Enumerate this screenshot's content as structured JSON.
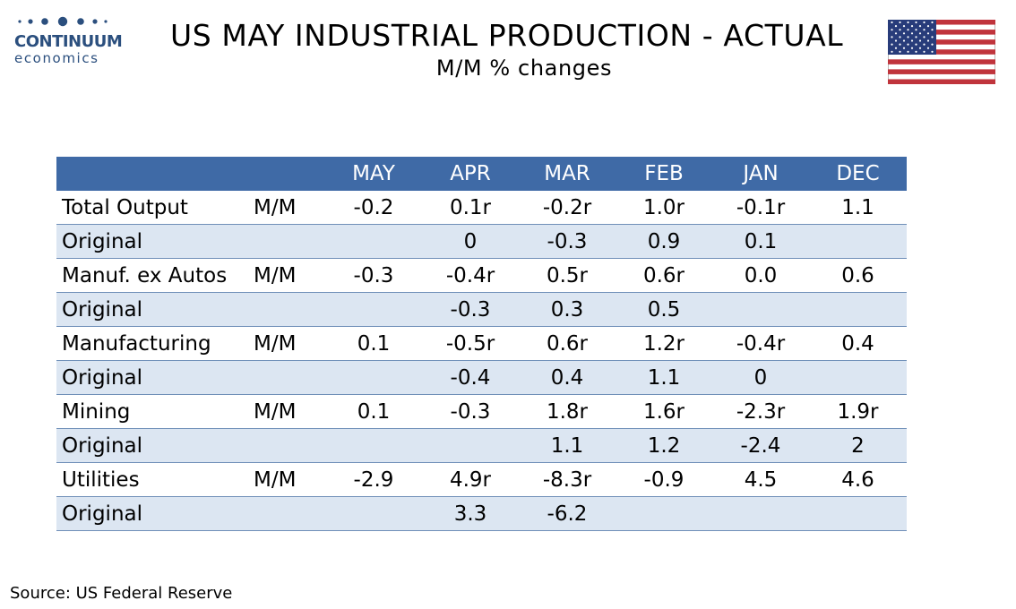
{
  "logo": {
    "word": "CONTINUUM",
    "sub": "economics",
    "color": "#2b4f7e"
  },
  "header": {
    "title": "US MAY INDUSTRIAL PRODUCTION - ACTUAL",
    "subtitle": "M/M % changes",
    "flag_icon": "us-flag-icon"
  },
  "chart_data": {
    "type": "table",
    "columns": [
      "",
      "",
      "MAY",
      "APR",
      "MAR",
      "FEB",
      "JAN",
      "DEC"
    ],
    "rows": [
      {
        "label": "Total Output",
        "unit": "M/M",
        "values": [
          "-0.2",
          "0.1r",
          "-0.2r",
          "1.0r",
          "-0.1r",
          "1.1"
        ]
      },
      {
        "label": "Original",
        "unit": "",
        "values": [
          "",
          "0",
          "-0.3",
          "0.9",
          "0.1",
          ""
        ]
      },
      {
        "label": "Manuf. ex Autos",
        "unit": "M/M",
        "values": [
          "-0.3",
          "-0.4r",
          "0.5r",
          "0.6r",
          "0.0",
          "0.6"
        ]
      },
      {
        "label": "Original",
        "unit": "",
        "values": [
          "",
          "-0.3",
          "0.3",
          "0.5",
          "",
          ""
        ]
      },
      {
        "label": "Manufacturing",
        "unit": "M/M",
        "values": [
          "0.1",
          "-0.5r",
          "0.6r",
          "1.2r",
          "-0.4r",
          "0.4"
        ]
      },
      {
        "label": "Original",
        "unit": "",
        "values": [
          "",
          "-0.4",
          "0.4",
          "1.1",
          "0",
          ""
        ]
      },
      {
        "label": "Mining",
        "unit": "M/M",
        "values": [
          "0.1",
          "-0.3",
          "1.8r",
          "1.6r",
          "-2.3r",
          "1.9r"
        ]
      },
      {
        "label": "Original",
        "unit": "",
        "values": [
          "",
          "",
          "1.1",
          "1.2",
          "-2.4",
          "2"
        ]
      },
      {
        "label": "Utilities",
        "unit": "M/M",
        "values": [
          "-2.9",
          "4.9r",
          "-8.3r",
          "-0.9",
          "4.5",
          "4.6"
        ]
      },
      {
        "label": "Original",
        "unit": "",
        "values": [
          "",
          "3.3",
          "-6.2",
          "",
          "",
          ""
        ]
      }
    ],
    "colors": {
      "header_bg": "#3f6aa6",
      "header_text": "#ffffff",
      "alt_row_bg": "#dce6f2",
      "rule": "#6f8fb8"
    }
  },
  "footer": {
    "source": "Source: US Federal Reserve"
  }
}
